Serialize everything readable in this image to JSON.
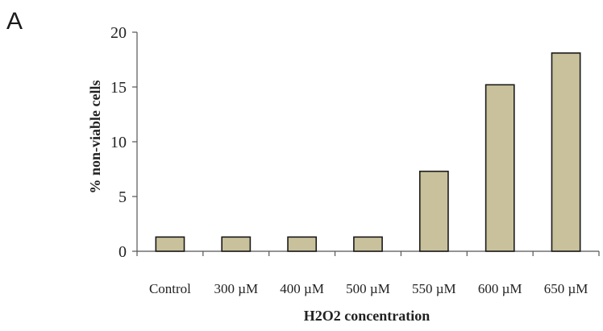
{
  "panel_label": "A",
  "chart_data": {
    "type": "bar",
    "categories": [
      "Control",
      "300 µM",
      "400 µM",
      "500 µM",
      "550 µM",
      "600 µM",
      "650 µM"
    ],
    "values": [
      1.3,
      1.3,
      1.3,
      1.3,
      7.3,
      15.2,
      18.1
    ],
    "xlabel": "H2O2 concentration",
    "ylabel": "% non-viable cells",
    "ylim": [
      0,
      20
    ],
    "yticks": [
      "0",
      "5",
      "10",
      "15",
      "20"
    ],
    "bar_color": "#c8c19b",
    "grid": false
  }
}
